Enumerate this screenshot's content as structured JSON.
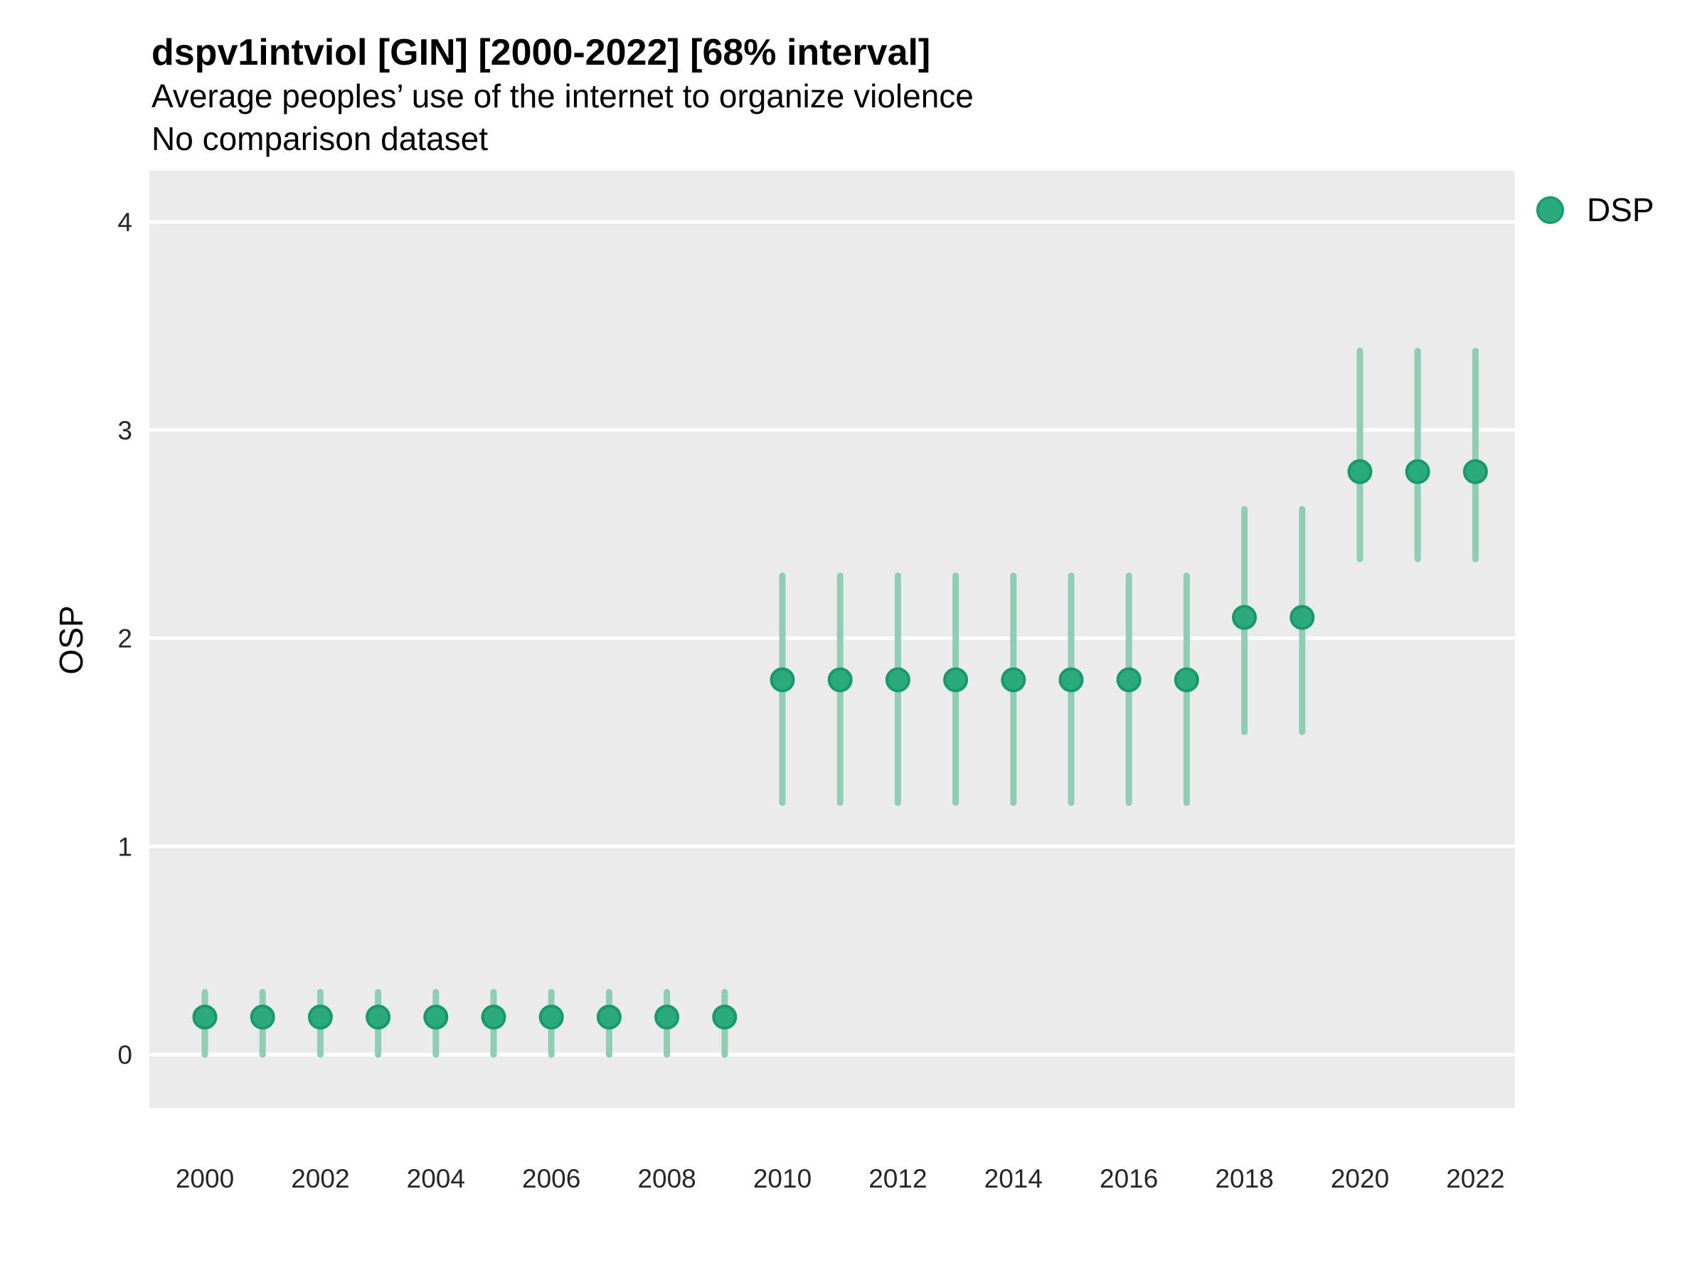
{
  "header": {
    "title": "dspv1intviol [GIN] [2000-2022] [68% interval]",
    "subtitle": "Average peoples’ use of the internet to organize violence",
    "note": "No comparison dataset"
  },
  "legend": {
    "position": "right-top",
    "items": [
      {
        "label": "DSP",
        "marker": "circle",
        "marker_fill": "#2BAA7E",
        "marker_stroke": "#18996C"
      }
    ]
  },
  "axes": {
    "y_title": "OSP",
    "x_tick_labels": [
      "2000",
      "2002",
      "2004",
      "2006",
      "2008",
      "2010",
      "2012",
      "2014",
      "2016",
      "2018",
      "2020",
      "2022"
    ],
    "y_tick_labels": [
      "0",
      "1",
      "2",
      "3",
      "4"
    ]
  },
  "chart_data": {
    "type": "scatter",
    "subtype": "pointrange",
    "title": "dspv1intviol [GIN] [2000-2022] [68% interval]",
    "subtitle": "Average peoples’ use of the internet to organize violence",
    "note": "No comparison dataset",
    "interval_level": "68%",
    "xlabel": "",
    "ylabel": "OSP",
    "xlim": [
      1999.0,
      2022.7
    ],
    "ylim": [
      -0.26,
      4.25
    ],
    "x_ticks": [
      2000,
      2002,
      2004,
      2006,
      2008,
      2010,
      2012,
      2014,
      2016,
      2018,
      2020,
      2022
    ],
    "y_ticks": [
      0,
      1,
      2,
      3,
      4
    ],
    "grid": "major-horizontal only, white lines on gray panel",
    "legend_position": "right-top",
    "colors": {
      "panel_bg": "#EBEBEB",
      "grid_line": "#FFFFFF",
      "point_fill": "#2BAA7E",
      "point_stroke": "#18996C",
      "interval_line": "#8FCDB5"
    },
    "series": [
      {
        "name": "DSP",
        "points": [
          {
            "year": 2000,
            "value": 0.18,
            "lo": 0.0,
            "hi": 0.3
          },
          {
            "year": 2001,
            "value": 0.18,
            "lo": 0.0,
            "hi": 0.3
          },
          {
            "year": 2002,
            "value": 0.18,
            "lo": 0.0,
            "hi": 0.3
          },
          {
            "year": 2003,
            "value": 0.18,
            "lo": 0.0,
            "hi": 0.3
          },
          {
            "year": 2004,
            "value": 0.18,
            "lo": 0.0,
            "hi": 0.3
          },
          {
            "year": 2005,
            "value": 0.18,
            "lo": 0.0,
            "hi": 0.3
          },
          {
            "year": 2006,
            "value": 0.18,
            "lo": 0.0,
            "hi": 0.3
          },
          {
            "year": 2007,
            "value": 0.18,
            "lo": 0.0,
            "hi": 0.3
          },
          {
            "year": 2008,
            "value": 0.18,
            "lo": 0.0,
            "hi": 0.3
          },
          {
            "year": 2009,
            "value": 0.18,
            "lo": 0.0,
            "hi": 0.3
          },
          {
            "year": 2010,
            "value": 1.8,
            "lo": 1.21,
            "hi": 2.3
          },
          {
            "year": 2011,
            "value": 1.8,
            "lo": 1.21,
            "hi": 2.3
          },
          {
            "year": 2012,
            "value": 1.8,
            "lo": 1.21,
            "hi": 2.3
          },
          {
            "year": 2013,
            "value": 1.8,
            "lo": 1.21,
            "hi": 2.3
          },
          {
            "year": 2014,
            "value": 1.8,
            "lo": 1.21,
            "hi": 2.3
          },
          {
            "year": 2015,
            "value": 1.8,
            "lo": 1.21,
            "hi": 2.3
          },
          {
            "year": 2016,
            "value": 1.8,
            "lo": 1.21,
            "hi": 2.3
          },
          {
            "year": 2017,
            "value": 1.8,
            "lo": 1.21,
            "hi": 2.3
          },
          {
            "year": 2018,
            "value": 2.1,
            "lo": 1.55,
            "hi": 2.62
          },
          {
            "year": 2019,
            "value": 2.1,
            "lo": 1.55,
            "hi": 2.62
          },
          {
            "year": 2020,
            "value": 2.8,
            "lo": 2.38,
            "hi": 3.38
          },
          {
            "year": 2021,
            "value": 2.8,
            "lo": 2.38,
            "hi": 3.38
          },
          {
            "year": 2022,
            "value": 2.8,
            "lo": 2.38,
            "hi": 3.38
          }
        ]
      }
    ]
  }
}
